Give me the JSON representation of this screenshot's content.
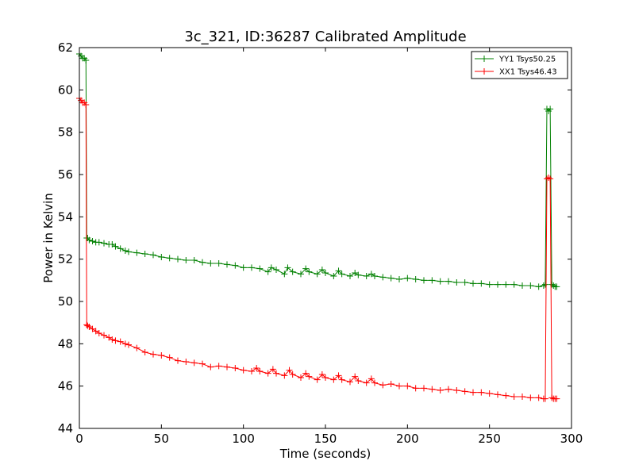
{
  "chart_data": {
    "type": "line",
    "title": "3c_321, ID:36287 Calibrated Amplitude",
    "xlabel": "Time (seconds)",
    "ylabel": "Power in Kelvin",
    "xlim": [
      0,
      300
    ],
    "ylim": [
      44,
      62
    ],
    "xticks": [
      "0",
      "50",
      "100",
      "150",
      "200",
      "250",
      "300"
    ],
    "yticks": [
      "44",
      "46",
      "48",
      "50",
      "52",
      "54",
      "56",
      "58",
      "60",
      "62"
    ],
    "grid": false,
    "legend_position": "top-right",
    "series": [
      {
        "name": "YY1 Tsys50.25",
        "color": "#008000",
        "marker": "+",
        "x": [
          0,
          1,
          2,
          3,
          4,
          4.5,
          5,
          6,
          8,
          10,
          12,
          15,
          18,
          20,
          22,
          25,
          28,
          30,
          35,
          40,
          45,
          50,
          55,
          60,
          65,
          70,
          75,
          80,
          85,
          90,
          95,
          100,
          105,
          110,
          115,
          117,
          120,
          125,
          127,
          130,
          135,
          138,
          140,
          145,
          148,
          150,
          155,
          158,
          160,
          165,
          168,
          170,
          175,
          178,
          180,
          185,
          190,
          195,
          200,
          205,
          210,
          215,
          220,
          225,
          230,
          235,
          240,
          245,
          250,
          255,
          260,
          265,
          270,
          275,
          280,
          283,
          284,
          285,
          286,
          287,
          288,
          289,
          290,
          291
        ],
        "y": [
          61.7,
          61.6,
          61.5,
          61.5,
          61.4,
          53.0,
          53.0,
          52.9,
          52.85,
          52.8,
          52.8,
          52.75,
          52.7,
          52.7,
          52.6,
          52.5,
          52.4,
          52.35,
          52.3,
          52.25,
          52.2,
          52.1,
          52.05,
          52.0,
          51.95,
          51.95,
          51.85,
          51.8,
          51.8,
          51.75,
          51.7,
          51.6,
          51.6,
          51.55,
          51.4,
          51.6,
          51.5,
          51.3,
          51.6,
          51.4,
          51.3,
          51.55,
          51.4,
          51.3,
          51.5,
          51.35,
          51.2,
          51.45,
          51.3,
          51.2,
          51.35,
          51.25,
          51.2,
          51.3,
          51.2,
          51.15,
          51.1,
          51.05,
          51.1,
          51.05,
          51.0,
          51.0,
          50.95,
          50.95,
          50.9,
          50.9,
          50.85,
          50.85,
          50.8,
          50.8,
          50.8,
          50.8,
          50.75,
          50.75,
          50.7,
          50.75,
          50.8,
          59.1,
          59.0,
          59.1,
          50.8,
          50.75,
          50.7,
          50.7
        ]
      },
      {
        "name": "XX1 Tsys46.43",
        "color": "#ff0000",
        "marker": "+",
        "x": [
          0,
          1,
          2,
          3,
          4,
          4.5,
          5,
          6,
          8,
          10,
          12,
          15,
          18,
          20,
          22,
          25,
          28,
          30,
          35,
          40,
          45,
          50,
          55,
          60,
          65,
          70,
          75,
          80,
          85,
          90,
          95,
          100,
          105,
          108,
          110,
          115,
          118,
          120,
          125,
          128,
          130,
          135,
          138,
          140,
          145,
          148,
          150,
          155,
          158,
          160,
          165,
          168,
          170,
          175,
          178,
          180,
          185,
          190,
          195,
          200,
          205,
          210,
          215,
          220,
          225,
          230,
          235,
          240,
          245,
          250,
          255,
          260,
          265,
          270,
          275,
          280,
          283,
          284,
          285,
          286,
          287,
          288,
          289,
          290,
          291
        ],
        "y": [
          59.6,
          59.5,
          59.4,
          59.4,
          59.3,
          48.9,
          48.85,
          48.8,
          48.7,
          48.6,
          48.5,
          48.4,
          48.3,
          48.2,
          48.15,
          48.1,
          48.0,
          47.95,
          47.8,
          47.6,
          47.5,
          47.45,
          47.35,
          47.2,
          47.15,
          47.1,
          47.05,
          46.9,
          46.95,
          46.9,
          46.85,
          46.75,
          46.7,
          46.85,
          46.7,
          46.6,
          46.8,
          46.6,
          46.5,
          46.75,
          46.55,
          46.4,
          46.6,
          46.45,
          46.3,
          46.55,
          46.4,
          46.3,
          46.5,
          46.3,
          46.2,
          46.45,
          46.25,
          46.15,
          46.35,
          46.15,
          46.05,
          46.1,
          46.0,
          46.0,
          45.9,
          45.9,
          45.85,
          45.8,
          45.85,
          45.8,
          45.75,
          45.7,
          45.7,
          45.65,
          45.6,
          45.55,
          45.5,
          45.5,
          45.45,
          45.45,
          45.4,
          45.4,
          55.8,
          55.85,
          55.8,
          45.45,
          45.4,
          45.4,
          45.4
        ]
      }
    ]
  }
}
